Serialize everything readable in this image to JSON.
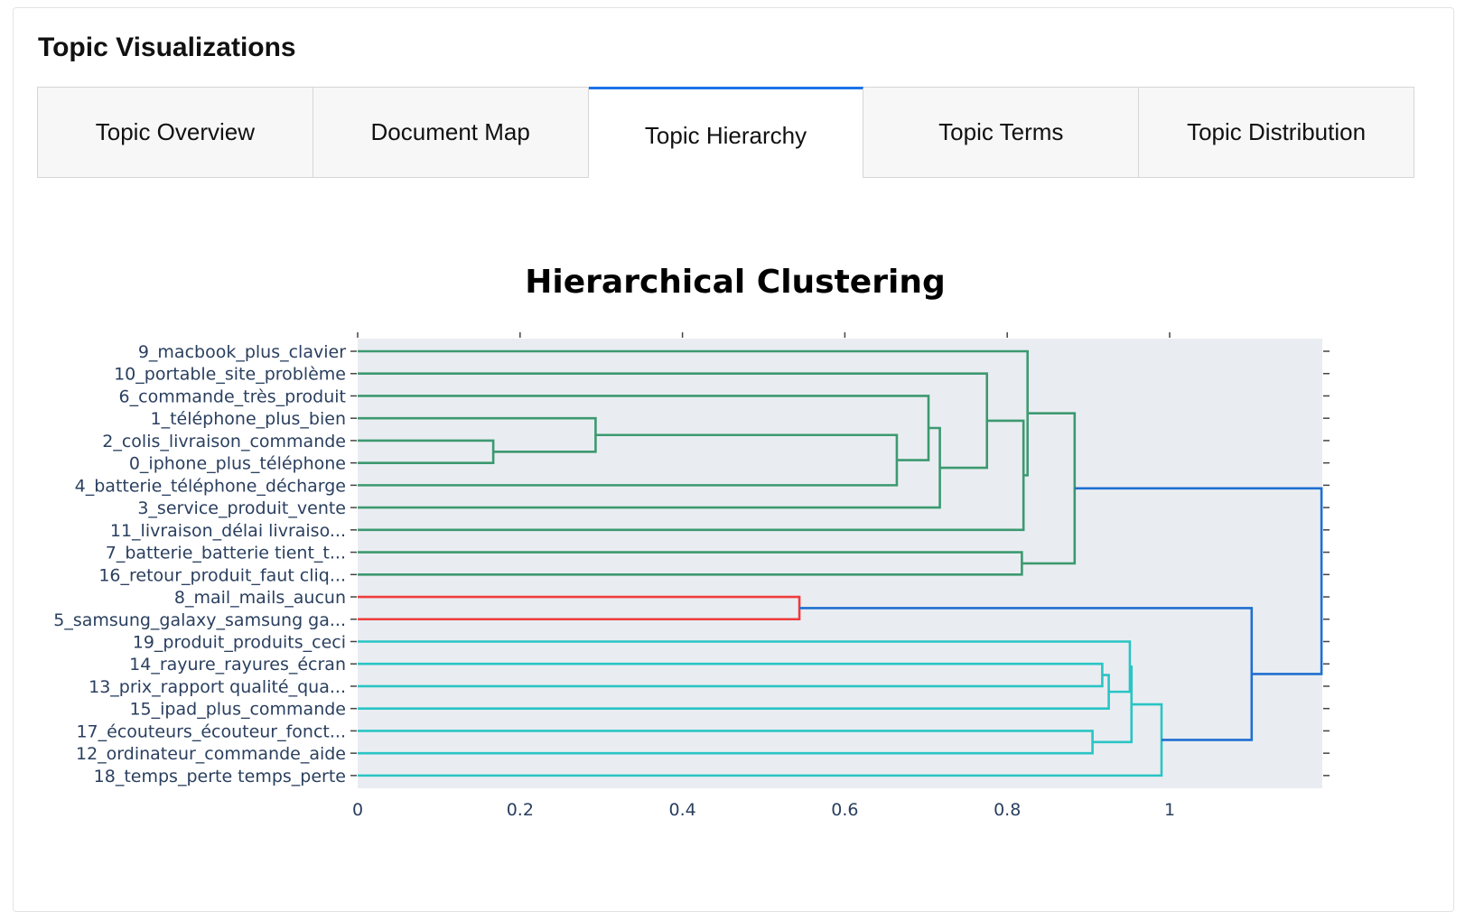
{
  "section_title": "Topic Visualizations",
  "tabs": [
    {
      "label": "Topic Overview",
      "active": false
    },
    {
      "label": "Document Map",
      "active": false
    },
    {
      "label": "Topic Hierarchy",
      "active": true
    },
    {
      "label": "Topic Terms",
      "active": false
    },
    {
      "label": "Topic Distribution",
      "active": false
    }
  ],
  "colors": {
    "accent": "#1a73e8",
    "plot_bg": "#e9edf2",
    "cluster_green": "#3d9970",
    "cluster_red": "#ef3b3b",
    "cluster_cyan": "#2ac4c4",
    "cluster_blue": "#1f6fd0"
  },
  "chart_data": {
    "type": "dendrogram",
    "title": "Hierarchical Clustering",
    "orientation": "horizontal",
    "xlim": [
      0,
      1.19
    ],
    "x_ticks": [
      0,
      0.2,
      0.4,
      0.6,
      0.8,
      1
    ],
    "x_tick_labels": [
      "0",
      "0.2",
      "0.4",
      "0.6",
      "0.8",
      "1"
    ],
    "leaves": [
      "9_macbook_plus_clavier",
      "10_portable_site_problème",
      "6_commande_très_produit",
      "1_téléphone_plus_bien",
      "2_colis_livraison_commande",
      "0_iphone_plus_téléphone",
      "4_batterie_téléphone_décharge",
      "3_service_produit_vente",
      "11_livraison_délai livraiso...",
      "7_batterie_batterie tient_t...",
      "16_retour_produit_faut cliq...",
      "8_mail_mails_aucun",
      "5_samsung_galaxy_samsung ga...",
      "19_produit_produits_ceci",
      "14_rayure_rayures_écran",
      "13_prix_rapport qualité_qua...",
      "15_ipad_plus_commande",
      "17_écouteurs_écouteur_fonct...",
      "12_ordinateur_commande_aide",
      "18_temps_perte temps_perte"
    ],
    "merges": [
      {
        "a": 4,
        "b": 5,
        "distance": 0.167,
        "cluster": "green"
      },
      {
        "a": 3,
        "b": "n0",
        "distance": 0.293,
        "cluster": "green"
      },
      {
        "a": "n1",
        "b": 6,
        "distance": 0.664,
        "cluster": "green"
      },
      {
        "a": 2,
        "b": "n2",
        "distance": 0.703,
        "cluster": "green"
      },
      {
        "a": "n3",
        "b": 7,
        "distance": 0.717,
        "cluster": "green"
      },
      {
        "a": 1,
        "b": "n4",
        "distance": 0.775,
        "cluster": "green"
      },
      {
        "a": "n5",
        "b": 8,
        "distance": 0.82,
        "cluster": "green"
      },
      {
        "a": 0,
        "b": "n6",
        "distance": 0.825,
        "cluster": "green"
      },
      {
        "a": 9,
        "b": 10,
        "distance": 0.818,
        "cluster": "green"
      },
      {
        "a": "n7",
        "b": "n8",
        "distance": 0.883,
        "cluster": "green"
      },
      {
        "a": 11,
        "b": 12,
        "distance": 0.544,
        "cluster": "red"
      },
      {
        "a": 14,
        "b": 15,
        "distance": 0.917,
        "cluster": "cyan"
      },
      {
        "a": "n11",
        "b": 16,
        "distance": 0.925,
        "cluster": "cyan"
      },
      {
        "a": 17,
        "b": 18,
        "distance": 0.905,
        "cluster": "cyan"
      },
      {
        "a": 13,
        "b": "n12",
        "distance": 0.951,
        "cluster": "cyan"
      },
      {
        "a": "n14",
        "b": "n13",
        "distance": 0.953,
        "cluster": "cyan"
      },
      {
        "a": "n15",
        "b": 19,
        "distance": 0.99,
        "cluster": "cyan"
      },
      {
        "a": "n10",
        "b": "n16",
        "distance": 1.101,
        "cluster": "blue"
      },
      {
        "a": "n9",
        "b": "n17",
        "distance": 1.187,
        "cluster": "blue"
      }
    ]
  }
}
